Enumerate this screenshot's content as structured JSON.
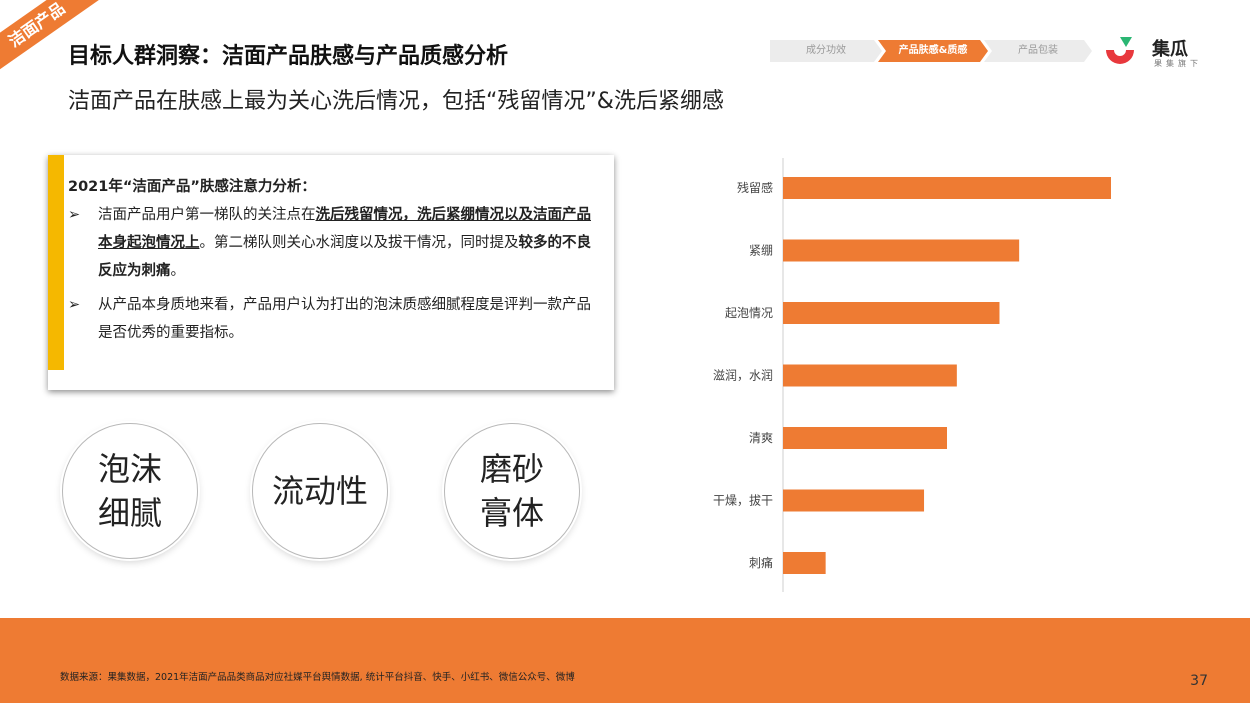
{
  "section_tag": "洁面产品",
  "header": {
    "title": "目标人群洞察：洁面产品肤感与产品质感分析",
    "subtitle": "洁面产品在肤感上最为关心洗后情况，包括“残留情况”&洗后紧绷感"
  },
  "nav": {
    "steps": [
      "成分功效",
      "产品肤感&质感",
      "产品包装"
    ],
    "active_index": 1,
    "accent_color": "#ee7b33"
  },
  "logo": {
    "name": "集瓜",
    "sub": "果集旗下",
    "colors": [
      "#e8383d",
      "#ee7b33",
      "#2bb673"
    ]
  },
  "analysis": {
    "heading": "2021年“洁面产品”肤感注意力分析：",
    "bullet_icon": "➢",
    "b1_p1": "洁面产品用户第一梯队的关注点在",
    "b1_em": "洗后残留情况，洗后紧绷情况以及洁面产品本身起泡情况上",
    "b1_p2": "。第二梯队则关心水润度以及拔干情况，同时提及",
    "b1_strong": "较多的不良反应为刺痛",
    "b1_p3": "。",
    "b2": "从产品本身质地来看，产品用户认为打出的泡沫质感细腻程度是评判一款产品是否优秀的重要指标。"
  },
  "circles": [
    {
      "line1": "泡沫",
      "line2": "细腻"
    },
    {
      "line1": "流动性",
      "line2": ""
    },
    {
      "line1": "磨砂",
      "line2": "膏体"
    }
  ],
  "chart_data": {
    "type": "bar",
    "orientation": "horizontal",
    "categories": [
      "残留感",
      "紧绷",
      "起泡情况",
      "滋润，水润",
      "清爽",
      "干燥，拔干",
      "刺痛"
    ],
    "values": [
      100,
      72,
      66,
      53,
      50,
      43,
      13
    ],
    "bar_color": "#ee7b33",
    "xlim": [
      0,
      100
    ],
    "grid": false,
    "title": "",
    "xlabel": "",
    "ylabel": ""
  },
  "footer": {
    "source": "数据来源：果集数据，2021年洁面产品品类商品对应社媒平台舆情数据, 统计平台抖音、快手、小红书、微信公众号、微博",
    "page_number": "37"
  }
}
